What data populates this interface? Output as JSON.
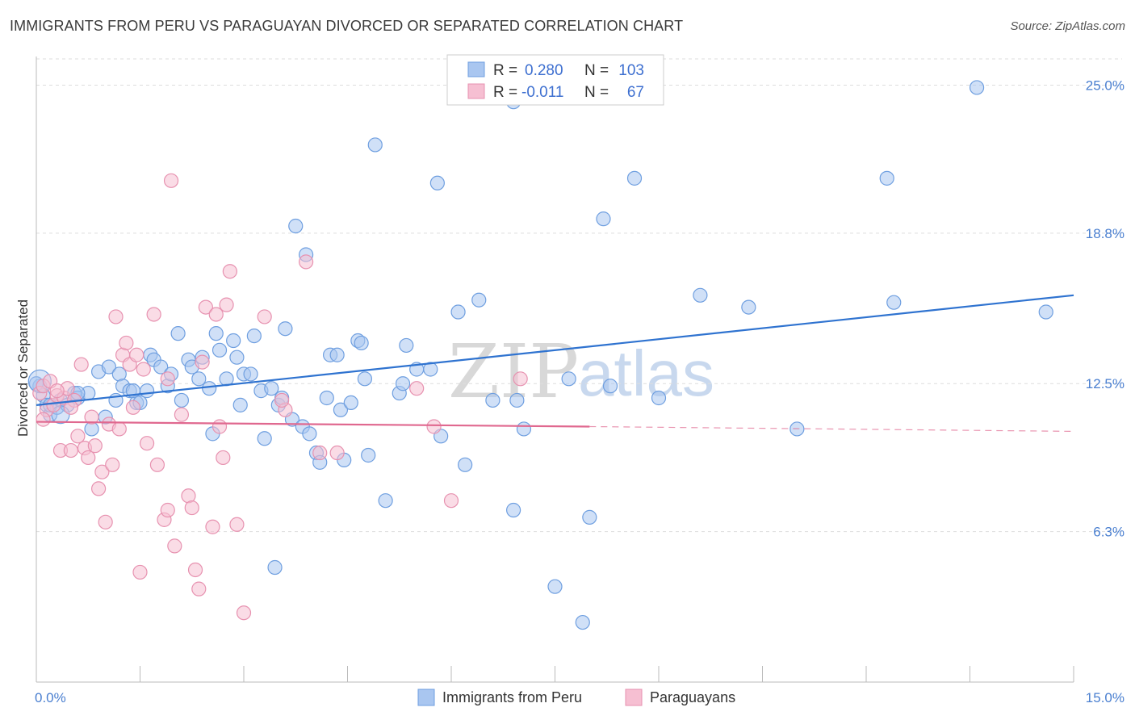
{
  "header": {
    "title": "IMMIGRANTS FROM PERU VS PARAGUAYAN DIVORCED OR SEPARATED CORRELATION CHART",
    "source": "Source: ZipAtlas.com"
  },
  "watermark": {
    "zip": "ZIP",
    "atlas": "atlas"
  },
  "legend": {
    "r_label": "R =",
    "n_label": "N =",
    "rows": [
      {
        "r": "0.280",
        "n": "103"
      },
      {
        "r": "-0.011",
        "n": "67"
      }
    ]
  },
  "bottom_legend": [
    "Immigrants from Peru",
    "Paraguayans"
  ],
  "chart_data": {
    "type": "scatter",
    "title": "IMMIGRANTS FROM PERU VS PARAGUAYAN DIVORCED OR SEPARATED CORRELATION CHART",
    "xlabel": "",
    "ylabel": "Divorced or Separated",
    "xlim": [
      0,
      15
    ],
    "ylim": [
      0,
      26.2
    ],
    "x_tick_labels": [
      "0.0%",
      "15.0%"
    ],
    "y_ticks": [
      6.3,
      12.5,
      18.8,
      25.0
    ],
    "y_tick_labels": [
      "6.3%",
      "12.5%",
      "18.8%",
      "25.0%"
    ],
    "grid": "horizontal dashed",
    "legend_position": "top-center",
    "colors": {
      "peru_fill": "#a9c6f0",
      "peru_stroke": "#6f9fe0",
      "peru_line": "#2f73d0",
      "para_fill": "#f6bfd2",
      "para_stroke": "#e792b0",
      "para_line": "#e0688f"
    },
    "series": [
      {
        "name": "Immigrants from Peru",
        "r": 0.28,
        "n": 103,
        "trend": {
          "x": [
            0,
            15
          ],
          "y": [
            11.6,
            16.2
          ]
        },
        "points": [
          [
            0.05,
            12.4
          ],
          [
            0.1,
            12.0
          ],
          [
            0.15,
            11.6
          ],
          [
            0.2,
            11.2
          ],
          [
            0.3,
            11.5
          ],
          [
            0.35,
            11.8
          ],
          [
            0.45,
            11.6
          ],
          [
            0.55,
            12.1
          ],
          [
            0.6,
            11.9
          ],
          [
            0.75,
            12.1
          ],
          [
            0.8,
            10.6
          ],
          [
            0.9,
            13.0
          ],
          [
            1.0,
            11.1
          ],
          [
            1.05,
            13.2
          ],
          [
            1.15,
            11.8
          ],
          [
            1.2,
            12.9
          ],
          [
            1.25,
            12.4
          ],
          [
            1.35,
            12.2
          ],
          [
            1.45,
            11.7
          ],
          [
            1.5,
            11.7
          ],
          [
            1.6,
            12.2
          ],
          [
            1.65,
            13.7
          ],
          [
            1.7,
            13.5
          ],
          [
            1.8,
            13.2
          ],
          [
            1.9,
            12.4
          ],
          [
            1.95,
            12.9
          ],
          [
            2.05,
            14.6
          ],
          [
            2.1,
            11.8
          ],
          [
            2.2,
            13.5
          ],
          [
            2.25,
            13.2
          ],
          [
            2.35,
            12.7
          ],
          [
            2.4,
            13.6
          ],
          [
            2.5,
            12.3
          ],
          [
            2.55,
            10.4
          ],
          [
            2.6,
            14.6
          ],
          [
            2.65,
            13.9
          ],
          [
            2.75,
            12.7
          ],
          [
            2.85,
            14.3
          ],
          [
            2.9,
            13.6
          ],
          [
            2.95,
            11.6
          ],
          [
            3.0,
            12.9
          ],
          [
            3.1,
            12.9
          ],
          [
            3.15,
            14.5
          ],
          [
            3.25,
            12.2
          ],
          [
            3.3,
            10.2
          ],
          [
            3.4,
            12.3
          ],
          [
            3.45,
            4.8
          ],
          [
            3.5,
            11.6
          ],
          [
            3.55,
            11.9
          ],
          [
            3.6,
            14.8
          ],
          [
            3.7,
            11.0
          ],
          [
            3.75,
            19.1
          ],
          [
            3.85,
            10.7
          ],
          [
            3.9,
            17.9
          ],
          [
            3.95,
            10.4
          ],
          [
            4.05,
            9.6
          ],
          [
            4.1,
            9.2
          ],
          [
            4.2,
            11.9
          ],
          [
            4.25,
            13.7
          ],
          [
            4.35,
            13.7
          ],
          [
            4.4,
            11.4
          ],
          [
            4.45,
            9.3
          ],
          [
            4.55,
            11.7
          ],
          [
            4.65,
            14.3
          ],
          [
            4.7,
            14.2
          ],
          [
            4.75,
            12.7
          ],
          [
            4.8,
            9.5
          ],
          [
            4.9,
            22.5
          ],
          [
            5.05,
            7.6
          ],
          [
            5.25,
            12.1
          ],
          [
            5.3,
            12.5
          ],
          [
            5.35,
            14.1
          ],
          [
            5.5,
            13.1
          ],
          [
            5.7,
            13.1
          ],
          [
            5.8,
            20.9
          ],
          [
            5.85,
            10.3
          ],
          [
            6.1,
            15.5
          ],
          [
            6.2,
            9.1
          ],
          [
            6.4,
            16.0
          ],
          [
            6.6,
            11.8
          ],
          [
            6.9,
            7.2
          ],
          [
            6.95,
            11.8
          ],
          [
            7.05,
            10.6
          ],
          [
            7.5,
            4.0
          ],
          [
            7.7,
            12.7
          ],
          [
            7.9,
            2.5
          ],
          [
            8.0,
            6.9
          ],
          [
            8.2,
            19.4
          ],
          [
            8.3,
            12.4
          ],
          [
            8.65,
            21.1
          ],
          [
            9.0,
            11.9
          ],
          [
            9.6,
            16.2
          ],
          [
            10.3,
            15.7
          ],
          [
            11.0,
            10.6
          ],
          [
            12.3,
            21.1
          ],
          [
            12.4,
            15.9
          ],
          [
            13.6,
            24.9
          ],
          [
            14.6,
            15.5
          ],
          [
            0.0,
            12.5
          ],
          [
            0.2,
            11.6
          ],
          [
            0.6,
            12.1
          ],
          [
            1.4,
            12.2
          ],
          [
            6.9,
            24.3
          ]
        ]
      },
      {
        "name": "Paraguayans",
        "r": -0.011,
        "n": 67,
        "trend": {
          "x": [
            0,
            8.0
          ],
          "y": [
            10.9,
            10.7
          ]
        },
        "trend_dashed": {
          "x": [
            8.0,
            15
          ],
          "y": [
            10.7,
            10.5
          ]
        },
        "points": [
          [
            0.05,
            12.1
          ],
          [
            0.1,
            12.4
          ],
          [
            0.15,
            11.4
          ],
          [
            0.2,
            12.6
          ],
          [
            0.25,
            11.6
          ],
          [
            0.3,
            12.0
          ],
          [
            0.35,
            9.7
          ],
          [
            0.4,
            11.9
          ],
          [
            0.45,
            12.3
          ],
          [
            0.5,
            9.7
          ],
          [
            0.55,
            11.8
          ],
          [
            0.6,
            10.3
          ],
          [
            0.65,
            13.3
          ],
          [
            0.7,
            9.8
          ],
          [
            0.75,
            9.4
          ],
          [
            0.8,
            11.1
          ],
          [
            0.85,
            9.9
          ],
          [
            0.9,
            8.1
          ],
          [
            0.95,
            8.8
          ],
          [
            1.0,
            6.7
          ],
          [
            1.05,
            10.8
          ],
          [
            1.1,
            9.1
          ],
          [
            1.15,
            15.3
          ],
          [
            1.2,
            10.6
          ],
          [
            1.25,
            13.7
          ],
          [
            1.3,
            14.2
          ],
          [
            1.35,
            13.3
          ],
          [
            1.4,
            11.5
          ],
          [
            1.45,
            13.7
          ],
          [
            1.5,
            4.6
          ],
          [
            1.55,
            13.1
          ],
          [
            1.6,
            10.0
          ],
          [
            1.7,
            15.4
          ],
          [
            1.75,
            9.1
          ],
          [
            1.85,
            6.8
          ],
          [
            1.9,
            7.2
          ],
          [
            1.95,
            21.0
          ],
          [
            2.0,
            5.7
          ],
          [
            2.1,
            11.2
          ],
          [
            2.2,
            7.8
          ],
          [
            2.25,
            7.3
          ],
          [
            2.3,
            4.7
          ],
          [
            2.35,
            3.9
          ],
          [
            2.4,
            13.4
          ],
          [
            2.45,
            15.7
          ],
          [
            2.55,
            6.5
          ],
          [
            2.6,
            15.4
          ],
          [
            2.65,
            10.7
          ],
          [
            2.7,
            9.4
          ],
          [
            2.75,
            15.8
          ],
          [
            2.8,
            17.2
          ],
          [
            2.9,
            6.6
          ],
          [
            3.0,
            2.9
          ],
          [
            3.3,
            15.3
          ],
          [
            3.6,
            11.4
          ],
          [
            3.9,
            17.6
          ],
          [
            4.1,
            9.6
          ],
          [
            4.35,
            9.6
          ],
          [
            5.5,
            12.3
          ],
          [
            5.75,
            10.7
          ],
          [
            6.0,
            7.6
          ],
          [
            7.0,
            12.7
          ],
          [
            0.1,
            11.0
          ],
          [
            0.3,
            12.2
          ],
          [
            0.5,
            11.5
          ],
          [
            1.9,
            12.7
          ],
          [
            3.55,
            11.8
          ]
        ]
      }
    ]
  }
}
